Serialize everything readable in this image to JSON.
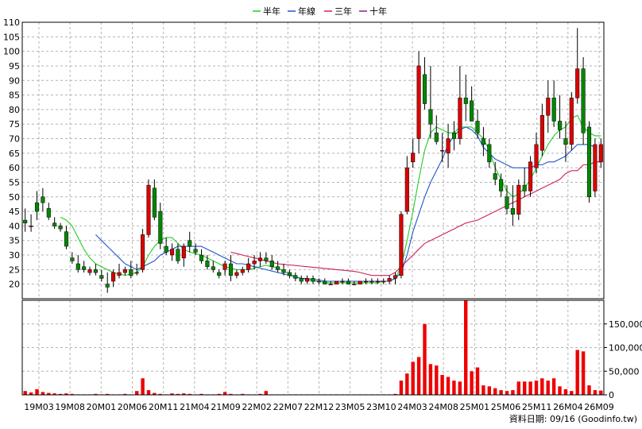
{
  "legend": {
    "items": [
      {
        "label": "半年",
        "color": "#22cc22"
      },
      {
        "label": "年線",
        "color": "#2255cc"
      },
      {
        "label": "三年",
        "color": "#cc2255"
      },
      {
        "label": "十年",
        "color": "#882288"
      }
    ]
  },
  "footer": {
    "text": "資料日期: 09/16  (Goodinfo.tw)"
  },
  "colors": {
    "up": "#dd0000",
    "down": "#008800",
    "volume": "#ee0000"
  },
  "chart_data": [
    {
      "type": "candlestick",
      "title": "",
      "ylim": [
        15,
        110
      ],
      "yticks": [
        20,
        25,
        30,
        35,
        40,
        45,
        50,
        55,
        60,
        65,
        70,
        75,
        80,
        85,
        90,
        95,
        100,
        105,
        110
      ],
      "xtick_labels": [
        "19M03",
        "19M08",
        "20M01",
        "20M06",
        "20M11",
        "21M04",
        "21M09",
        "22M02",
        "22M07",
        "22M12",
        "23M05",
        "23M10",
        "24M03",
        "24M08",
        "25M01",
        "25M06",
        "25M11",
        "26M04",
        "26M09"
      ],
      "candles": [
        [
          42,
          46,
          38,
          41
        ],
        [
          40,
          44,
          38,
          40
        ],
        [
          48,
          52,
          42,
          45
        ],
        [
          50,
          53,
          45,
          48
        ],
        [
          46,
          48,
          42,
          43
        ],
        [
          41,
          43,
          39,
          40
        ],
        [
          40,
          41,
          38,
          39
        ],
        [
          38,
          40,
          32,
          33
        ],
        [
          29,
          31,
          27,
          28
        ],
        [
          27,
          30,
          24,
          25
        ],
        [
          26,
          28,
          24,
          25
        ],
        [
          24,
          26,
          23,
          25
        ],
        [
          25,
          27,
          23,
          24
        ],
        [
          23,
          25,
          21,
          22
        ],
        [
          20,
          24,
          17,
          19
        ],
        [
          21,
          25,
          19,
          24
        ],
        [
          23,
          27,
          22,
          24
        ],
        [
          24,
          26,
          23,
          25
        ],
        [
          25,
          28,
          22,
          23
        ],
        [
          24,
          27,
          23,
          24
        ],
        [
          25,
          39,
          24,
          37
        ],
        [
          37,
          56,
          36,
          54
        ],
        [
          53,
          56,
          42,
          43
        ],
        [
          45,
          48,
          32,
          34
        ],
        [
          33,
          36,
          30,
          31
        ],
        [
          30,
          34,
          28,
          32
        ],
        [
          32,
          34,
          27,
          28
        ],
        [
          29,
          34,
          26,
          33
        ],
        [
          35,
          38,
          31,
          33
        ],
        [
          32,
          34,
          30,
          31
        ],
        [
          30,
          32,
          27,
          28
        ],
        [
          28,
          30,
          25,
          26
        ],
        [
          26,
          28,
          24,
          25
        ],
        [
          24,
          25,
          22,
          23
        ],
        [
          25,
          28,
          23,
          27
        ],
        [
          27,
          30,
          21,
          23
        ],
        [
          23,
          25,
          22,
          24
        ],
        [
          24,
          26,
          23,
          25
        ],
        [
          25,
          29,
          24,
          27
        ],
        [
          27,
          30,
          25,
          28
        ],
        [
          28,
          31,
          26,
          29
        ],
        [
          29,
          31,
          27,
          28
        ],
        [
          28,
          30,
          25,
          26
        ],
        [
          26,
          28,
          24,
          25
        ],
        [
          25,
          27,
          23,
          24
        ],
        [
          24,
          25,
          22,
          23
        ],
        [
          23,
          24,
          21,
          22
        ],
        [
          22,
          23,
          20,
          21
        ],
        [
          21,
          23,
          20,
          22
        ],
        [
          22,
          23,
          20,
          21
        ],
        [
          21,
          22,
          20,
          21
        ],
        [
          21,
          22,
          20,
          20
        ],
        [
          20,
          21,
          20,
          20
        ],
        [
          20,
          21,
          20,
          21
        ],
        [
          21,
          22,
          20,
          21
        ],
        [
          21,
          22,
          20,
          20
        ],
        [
          20,
          21,
          20,
          20
        ],
        [
          20,
          21,
          20,
          21
        ],
        [
          21,
          22,
          20,
          21
        ],
        [
          21,
          22,
          20,
          21
        ],
        [
          21,
          22,
          20,
          21
        ],
        [
          21,
          22,
          20,
          21
        ],
        [
          21,
          23,
          20,
          22
        ],
        [
          22,
          24,
          20,
          23
        ],
        [
          23,
          45,
          22,
          44
        ],
        [
          45,
          64,
          44,
          60
        ],
        [
          62,
          70,
          60,
          65
        ],
        [
          70,
          100,
          65,
          95
        ],
        [
          92,
          98,
          80,
          82
        ],
        [
          80,
          95,
          70,
          75
        ],
        [
          72,
          78,
          68,
          69
        ],
        [
          66,
          72,
          62,
          66
        ],
        [
          65,
          75,
          60,
          70
        ],
        [
          72,
          76,
          66,
          70
        ],
        [
          70,
          95,
          68,
          84
        ],
        [
          84,
          92,
          76,
          82
        ],
        [
          83,
          88,
          76,
          76
        ],
        [
          76,
          80,
          70,
          72
        ],
        [
          70,
          74,
          64,
          68
        ],
        [
          68,
          70,
          60,
          62
        ],
        [
          58,
          62,
          54,
          56
        ],
        [
          56,
          58,
          50,
          52
        ],
        [
          50,
          54,
          44,
          46
        ],
        [
          46,
          54,
          40,
          44
        ],
        [
          44,
          56,
          42,
          54
        ],
        [
          54,
          60,
          50,
          52
        ],
        [
          52,
          64,
          50,
          62
        ],
        [
          60,
          72,
          58,
          68
        ],
        [
          66,
          82,
          64,
          78
        ],
        [
          78,
          90,
          72,
          84
        ],
        [
          84,
          90,
          74,
          76
        ],
        [
          76,
          85,
          70,
          73
        ],
        [
          70,
          76,
          62,
          68
        ],
        [
          68,
          86,
          66,
          84
        ],
        [
          84,
          108,
          82,
          94
        ],
        [
          94,
          98,
          68,
          72
        ],
        [
          74,
          76,
          48,
          50
        ],
        [
          52,
          70,
          50,
          68
        ],
        [
          62,
          70,
          60,
          68
        ]
      ],
      "series": [
        {
          "name": "半年",
          "values": [
            null,
            null,
            null,
            null,
            null,
            null,
            43,
            42,
            40,
            36,
            32,
            29,
            27,
            26,
            25,
            24,
            23.5,
            23,
            23.5,
            24,
            26,
            30,
            33,
            35,
            36,
            36,
            34,
            32,
            31,
            30.5,
            30,
            29,
            28,
            27,
            26,
            25.5,
            25,
            25,
            25,
            25.5,
            26,
            26.5,
            26,
            25.5,
            24.5,
            23.5,
            22.5,
            22,
            21.5,
            21,
            21,
            20.5,
            20.5,
            20.5,
            20.5,
            20.5,
            20.5,
            20.5,
            20.5,
            20.5,
            20.5,
            21,
            21,
            22,
            26,
            35,
            45,
            56,
            66,
            72,
            74,
            73,
            72,
            72,
            74,
            74,
            74,
            72,
            70,
            66,
            60,
            56,
            52,
            50,
            51,
            53,
            56,
            60,
            64,
            68,
            71,
            73,
            74,
            77,
            78,
            74,
            72,
            71,
            71
          ]
        },
        {
          "name": "年線",
          "values": [
            null,
            null,
            null,
            null,
            null,
            null,
            null,
            null,
            null,
            null,
            null,
            null,
            37,
            35,
            33,
            31,
            29,
            27,
            26,
            25,
            26,
            27,
            28,
            30,
            31,
            32,
            33,
            33,
            33,
            33,
            33,
            32,
            31,
            30,
            29,
            28,
            27,
            27,
            26.5,
            26,
            25.5,
            25,
            24.5,
            24,
            23.5,
            23,
            22.5,
            22,
            22,
            21.5,
            21.5,
            21,
            21,
            21,
            21,
            21,
            21,
            21,
            21,
            21,
            21,
            21,
            21,
            22,
            24,
            30,
            38,
            44,
            50,
            55,
            59,
            63,
            68,
            71,
            73,
            74,
            73,
            71,
            67,
            65,
            63,
            62,
            61,
            60,
            60,
            60,
            60,
            61,
            61,
            62,
            62,
            63,
            64,
            66,
            68,
            68,
            68,
            67
          ]
        },
        {
          "name": "三年",
          "values": [
            null,
            null,
            null,
            null,
            null,
            null,
            null,
            null,
            null,
            null,
            null,
            null,
            null,
            null,
            null,
            null,
            null,
            null,
            null,
            null,
            null,
            null,
            null,
            null,
            null,
            null,
            null,
            null,
            null,
            null,
            null,
            null,
            null,
            null,
            null,
            31,
            30.5,
            30,
            29.5,
            29,
            28.5,
            28,
            27.5,
            27,
            26.8,
            26.6,
            26.4,
            26.2,
            26,
            25.8,
            25.6,
            25.4,
            25.2,
            25,
            24.8,
            24.6,
            24.4,
            24,
            23.5,
            23,
            23,
            23,
            23,
            24,
            26,
            28,
            30,
            32,
            34,
            35,
            36,
            37,
            38,
            39,
            40,
            41,
            41.5,
            42,
            43,
            44,
            45,
            46,
            47,
            48,
            49,
            50,
            51,
            52,
            53,
            54,
            55,
            56,
            58,
            59,
            59,
            61,
            61,
            62,
            62
          ]
        }
      ]
    },
    {
      "type": "bar",
      "title": "",
      "ylim": [
        0,
        200000
      ],
      "yticks": [
        0,
        50000,
        100000,
        150000
      ],
      "ytick_labels": [
        "0",
        "50,000",
        "100,000",
        "150,000"
      ],
      "values": [
        8000,
        5000,
        12000,
        6000,
        4000,
        3000,
        2000,
        3000,
        2000,
        1000,
        1000,
        1000,
        2000,
        1000,
        2000,
        1000,
        1000,
        2000,
        1000,
        8000,
        35000,
        10000,
        4000,
        2000,
        1000,
        3000,
        2000,
        3000,
        2000,
        1000,
        2000,
        1000,
        1000,
        2000,
        6000,
        2000,
        1000,
        2000,
        1000,
        1000,
        2000,
        8000,
        1000,
        1000,
        1000,
        1000,
        1000,
        1000,
        1000,
        1000,
        1000,
        1000,
        1000,
        1000,
        1000,
        1000,
        1000,
        1000,
        1000,
        1000,
        1000,
        1000,
        1000,
        2000,
        30000,
        45000,
        70000,
        80000,
        150000,
        65000,
        62000,
        42000,
        38000,
        30000,
        28000,
        200000,
        50000,
        58000,
        20000,
        18000,
        14000,
        10000,
        8000,
        10000,
        28000,
        28000,
        28000,
        30000,
        35000,
        30000,
        35000,
        18000,
        12000,
        8000,
        95000,
        92000,
        20000,
        10000,
        9000
      ]
    }
  ]
}
